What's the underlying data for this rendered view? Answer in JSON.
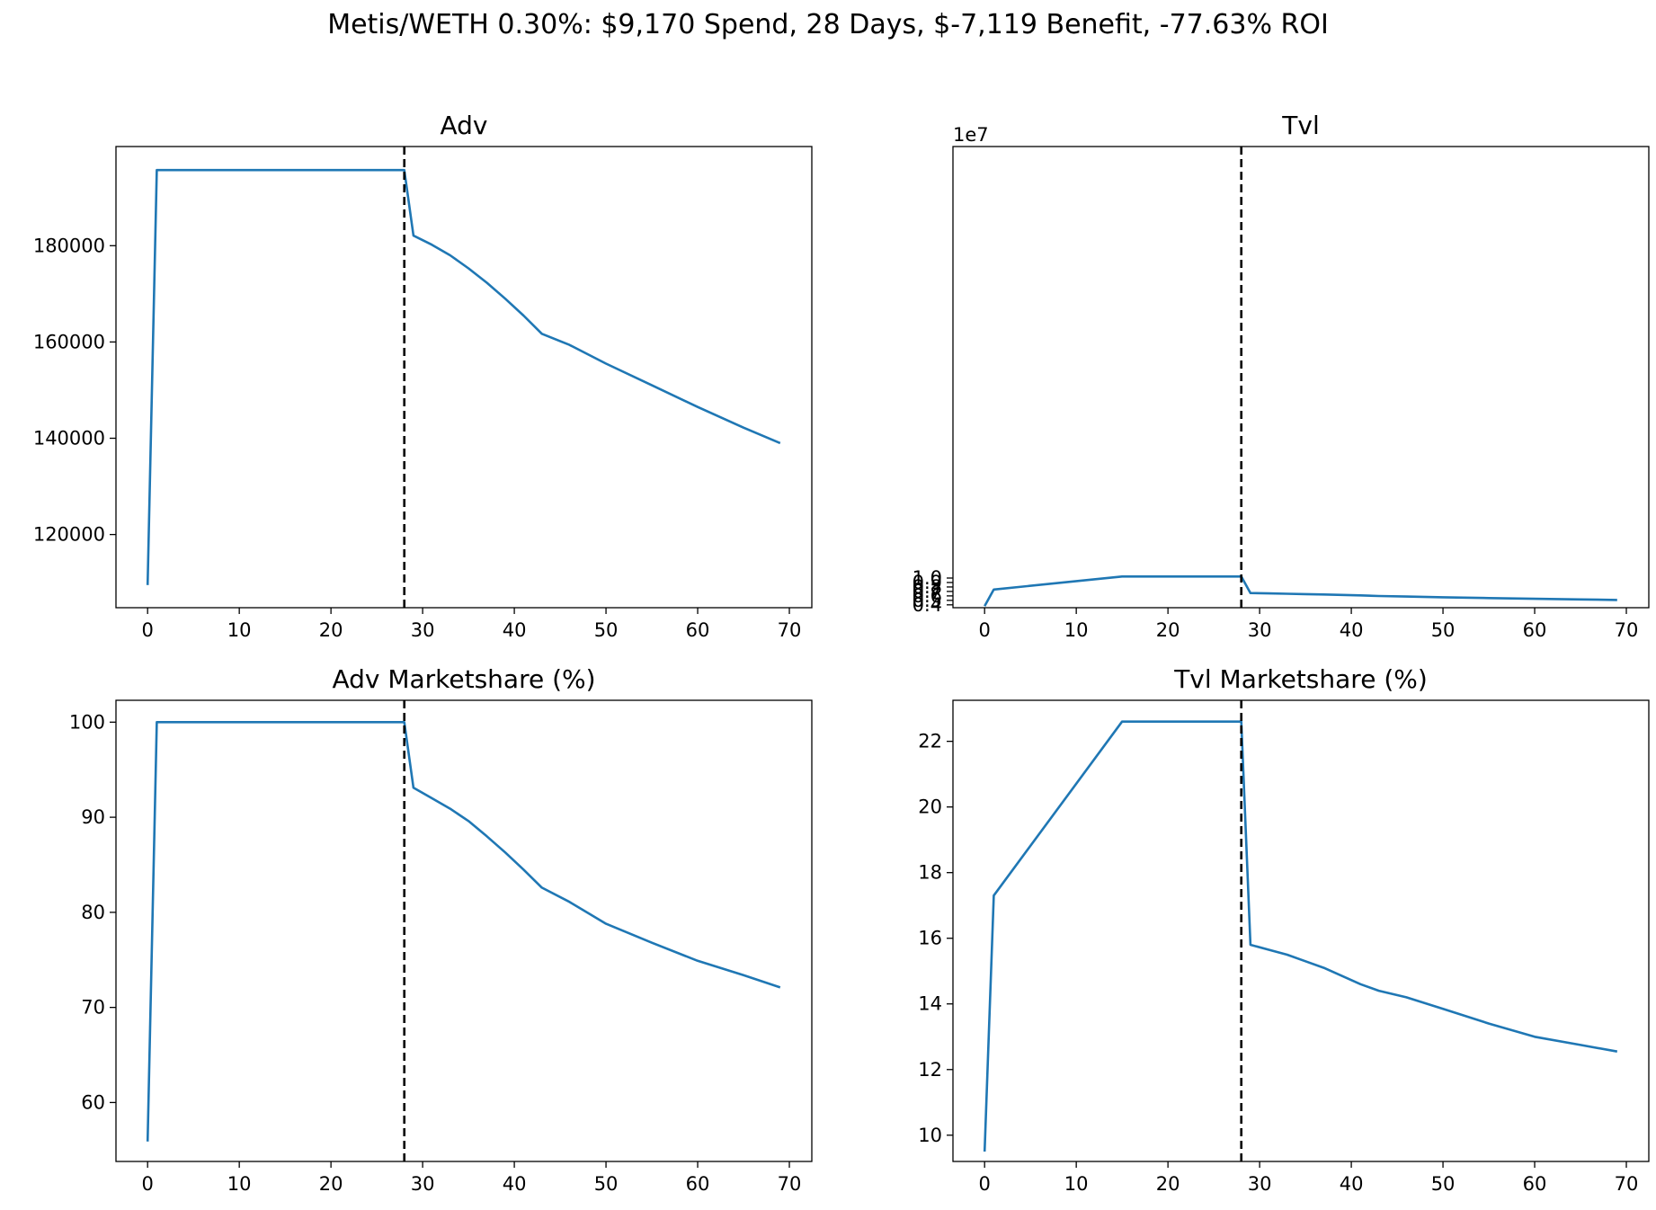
{
  "suptitle": "Metis/WETH 0.30%: $9,170 Spend, 28 Days, $-7,119 Benefit, -77.63% ROI",
  "line_color": "#1f77b4",
  "marker_color": "#000000",
  "chart_data": [
    {
      "type": "line",
      "title": "Adv",
      "xlim": [
        -3.45,
        72.45
      ],
      "ylim": [
        104800,
        200600
      ],
      "xticks": [
        0,
        10,
        20,
        30,
        40,
        50,
        60,
        70
      ],
      "yticks": [
        120000,
        140000,
        160000,
        180000
      ],
      "ytick_labels": [
        "120000",
        "140000",
        "160000",
        "180000"
      ],
      "y_offset_label": "",
      "vline_x": 28,
      "series": [
        {
          "x": [
            0,
            1,
            28,
            29,
            31,
            33,
            35,
            37,
            39,
            41,
            43,
            46,
            50,
            55,
            60,
            65,
            69
          ],
          "y": [
            109500,
            195700,
            195700,
            182100,
            180200,
            178000,
            175300,
            172300,
            169000,
            165500,
            161700,
            159400,
            155500,
            151000,
            146500,
            142200,
            139000
          ]
        }
      ]
    },
    {
      "type": "line",
      "title": "Tvl",
      "xlim": [
        -3.45,
        72.45
      ],
      "ylim": [
        0.336,
        10.66
      ],
      "xticks": [
        0,
        10,
        20,
        30,
        40,
        50,
        60,
        70
      ],
      "yticks": [
        0.4,
        0.5,
        0.6,
        0.7,
        0.8,
        0.9,
        1.0
      ],
      "ytick_labels": [
        "0.4",
        "0.5",
        "0.6",
        "0.7",
        "0.8",
        "0.9",
        "1.0"
      ],
      "y_offset_label": "1e7",
      "vline_x": 28,
      "series": [
        {
          "x": [
            0,
            1,
            15,
            28,
            29,
            31,
            33,
            35,
            37,
            39,
            41,
            43,
            46,
            50,
            55,
            60,
            65,
            69
          ],
          "y": [
            0.37,
            0.742,
            1.034,
            1.034,
            0.665,
            0.655,
            0.648,
            0.64,
            0.632,
            0.622,
            0.611,
            0.597,
            0.585,
            0.57,
            0.552,
            0.535,
            0.521,
            0.51
          ]
        }
      ]
    },
    {
      "type": "line",
      "title": "Adv Marketshare (%)",
      "xlim": [
        -3.45,
        72.45
      ],
      "ylim": [
        53.8,
        102.3
      ],
      "xticks": [
        0,
        10,
        20,
        30,
        40,
        50,
        60,
        70
      ],
      "yticks": [
        60,
        70,
        80,
        90,
        100
      ],
      "ytick_labels": [
        "60",
        "70",
        "80",
        "90",
        "100"
      ],
      "y_offset_label": "",
      "vline_x": 28,
      "series": [
        {
          "x": [
            0,
            1,
            28,
            29,
            31,
            33,
            35,
            37,
            39,
            41,
            43,
            46,
            50,
            55,
            60,
            65,
            69
          ],
          "y": [
            55.9,
            100,
            100,
            93.1,
            92.0,
            90.9,
            89.6,
            88.0,
            86.3,
            84.5,
            82.6,
            81.1,
            78.8,
            76.8,
            74.9,
            73.4,
            72.1
          ]
        }
      ]
    },
    {
      "type": "line",
      "title": "Tvl Marketshare (%)",
      "xlim": [
        -3.45,
        72.45
      ],
      "ylim": [
        9.2,
        23.25
      ],
      "xticks": [
        0,
        10,
        20,
        30,
        40,
        50,
        60,
        70
      ],
      "yticks": [
        10,
        12,
        14,
        16,
        18,
        20,
        22
      ],
      "ytick_labels": [
        "10",
        "12",
        "14",
        "16",
        "18",
        "20",
        "22"
      ],
      "y_offset_label": "",
      "vline_x": 28,
      "series": [
        {
          "x": [
            0,
            1,
            15,
            28,
            29,
            31,
            33,
            35,
            37,
            39,
            41,
            43,
            46,
            50,
            55,
            60,
            65,
            69
          ],
          "y": [
            9.5,
            17.3,
            22.6,
            22.6,
            15.8,
            15.65,
            15.5,
            15.3,
            15.1,
            14.85,
            14.6,
            14.4,
            14.2,
            13.85,
            13.4,
            13.0,
            12.75,
            12.55
          ]
        }
      ]
    }
  ]
}
